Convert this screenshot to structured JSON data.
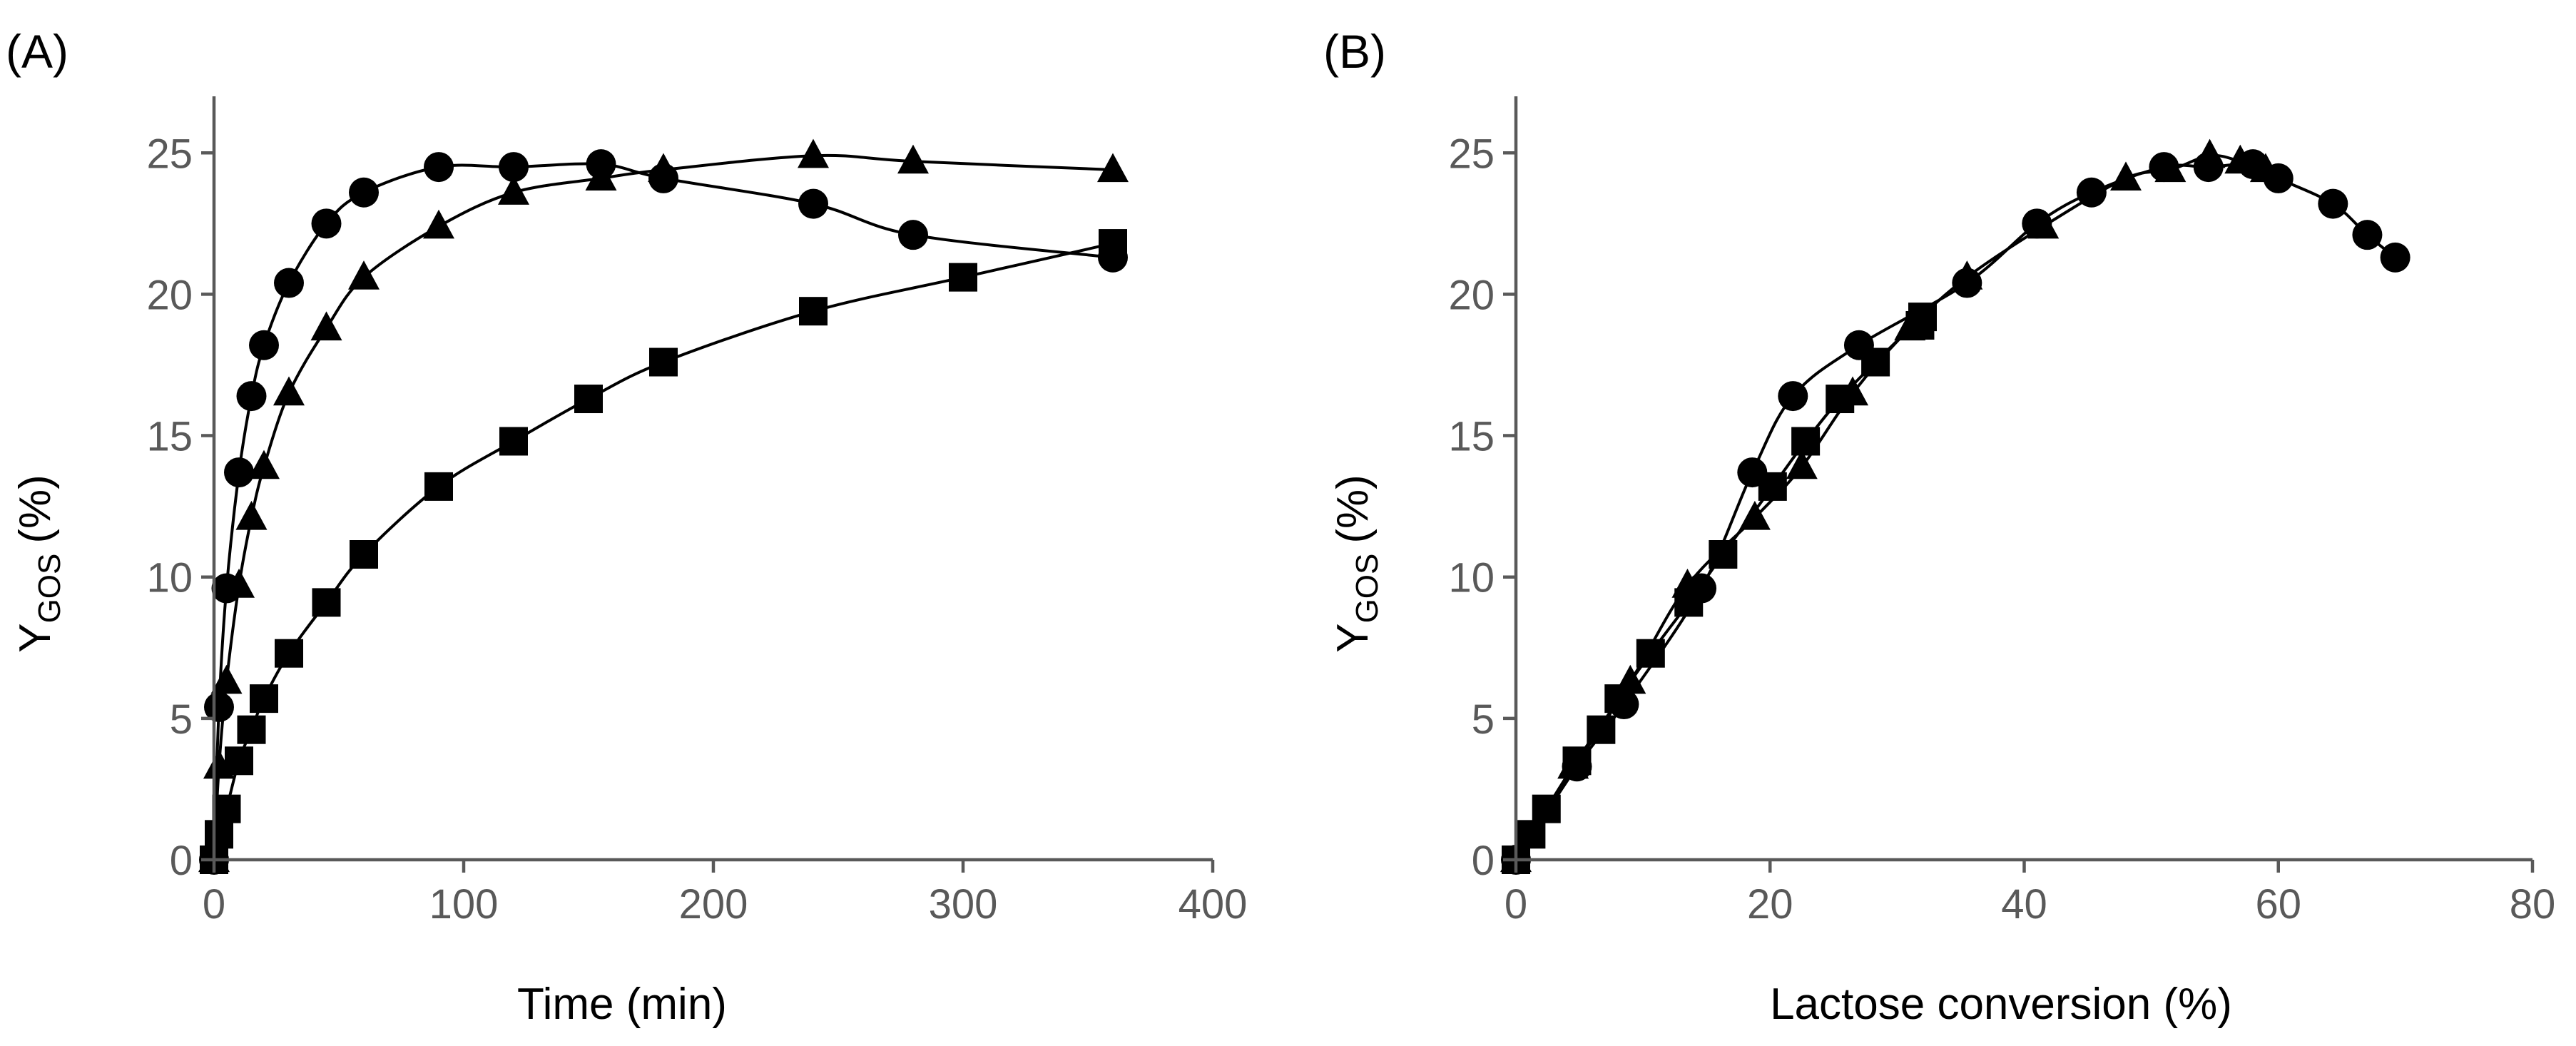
{
  "chart_data": [
    {
      "type": "line",
      "panel_label": "(A)",
      "xlabel": "Time (min)",
      "ylabel": "Y",
      "ylabel_subscript": "GOS",
      "ylabel_unit": "(%)",
      "xlim": [
        0,
        400
      ],
      "ylim": [
        0,
        27
      ],
      "xticks": [
        "0",
        "100",
        "200",
        "300",
        "400"
      ],
      "xtick_values": [
        0,
        100,
        200,
        300,
        400
      ],
      "yticks": [
        "0",
        "5",
        "10",
        "15",
        "20",
        "25"
      ],
      "ytick_values": [
        0,
        5,
        10,
        15,
        20,
        25
      ],
      "grid": false,
      "series": [
        {
          "name": "circles",
          "marker": "circle",
          "x": [
            0,
            2,
            5,
            10,
            15,
            20,
            30,
            45,
            60,
            90,
            120,
            155,
            180,
            240,
            280,
            360
          ],
          "y": [
            0,
            5.4,
            9.6,
            13.7,
            16.4,
            18.2,
            20.4,
            22.5,
            23.6,
            24.5,
            24.5,
            24.6,
            24.1,
            23.2,
            22.1,
            21.3
          ]
        },
        {
          "name": "triangles",
          "marker": "triangle",
          "x": [
            0,
            2,
            5,
            10,
            15,
            20,
            30,
            45,
            60,
            90,
            120,
            155,
            180,
            240,
            280,
            360
          ],
          "y": [
            0,
            3.3,
            6.3,
            9.7,
            12.1,
            13.9,
            16.5,
            18.8,
            20.6,
            22.4,
            23.6,
            24.1,
            24.4,
            24.9,
            24.7,
            24.4
          ]
        },
        {
          "name": "squares",
          "marker": "square",
          "x": [
            0,
            2,
            5,
            10,
            15,
            20,
            30,
            45,
            60,
            90,
            120,
            150,
            180,
            240,
            300,
            360
          ],
          "y": [
            0,
            0.9,
            1.8,
            3.5,
            4.6,
            5.7,
            7.3,
            9.1,
            10.8,
            13.2,
            14.8,
            16.3,
            17.6,
            19.4,
            20.6,
            21.8
          ]
        }
      ]
    },
    {
      "type": "line",
      "panel_label": "(B)",
      "xlabel": "Lactose conversion (%)",
      "ylabel": "Y",
      "ylabel_subscript": "GOS",
      "ylabel_unit": "(%)",
      "xlim": [
        0,
        80
      ],
      "ylim": [
        0,
        27
      ],
      "xticks": [
        "0",
        "20",
        "40",
        "60",
        "80"
      ],
      "xtick_values": [
        0,
        20,
        40,
        60,
        80
      ],
      "yticks": [
        "0",
        "5",
        "10",
        "15",
        "20",
        "25"
      ],
      "ytick_values": [
        0,
        5,
        10,
        15,
        20,
        25
      ],
      "grid": false,
      "series": [
        {
          "name": "circles",
          "marker": "circle",
          "x": [
            0,
            4.8,
            8.5,
            14.6,
            18.6,
            21.8,
            27,
            35.5,
            41,
            45.3,
            51,
            54.5,
            58,
            60,
            64.3,
            67,
            69.2
          ],
          "y": [
            0,
            3.3,
            5.5,
            9.6,
            13.7,
            16.4,
            18.2,
            20.4,
            22.5,
            23.6,
            24.5,
            24.5,
            24.6,
            24.1,
            23.2,
            22.1,
            21.3
          ]
        },
        {
          "name": "triangles",
          "marker": "triangle",
          "x": [
            0,
            4.5,
            9,
            13.5,
            18.8,
            22.5,
            26.5,
            31,
            35.5,
            41.5,
            48,
            51.5,
            54.6,
            57,
            59
          ],
          "y": [
            0,
            3.3,
            6.3,
            9.7,
            12.1,
            13.9,
            16.5,
            18.8,
            20.6,
            22.4,
            24.1,
            24.4,
            24.9,
            24.7,
            24.4
          ]
        },
        {
          "name": "squares",
          "marker": "square",
          "x": [
            0,
            1.2,
            2.4,
            4.8,
            6.7,
            8.1,
            10.6,
            13.6,
            16.3,
            20.2,
            22.8,
            25.5,
            28.3,
            32,
            31.8
          ],
          "y": [
            0,
            0.9,
            1.8,
            3.5,
            4.6,
            5.7,
            7.3,
            9.1,
            10.8,
            13.2,
            14.8,
            16.3,
            17.6,
            19.2,
            18.9
          ]
        }
      ]
    }
  ]
}
